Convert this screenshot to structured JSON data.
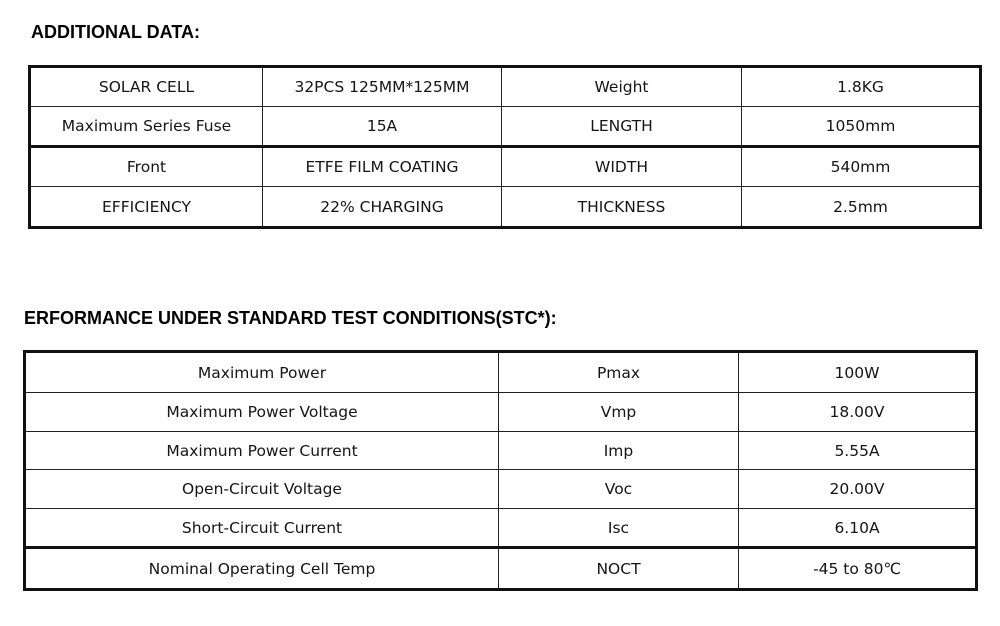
{
  "additional": {
    "title": "ADDITIONAL DATA:",
    "rows": [
      [
        "SOLAR CELL",
        "32PCS  125MM*125MM",
        "Weight",
        "1.8KG"
      ],
      [
        "Maximum Series Fuse",
        "15A",
        "LENGTH",
        "1050mm"
      ],
      [
        "Front",
        "ETFE FILM COATING",
        "WIDTH",
        "540mm"
      ],
      [
        "EFFICIENCY",
        "22% CHARGING",
        "THICKNESS",
        "2.5mm"
      ]
    ]
  },
  "performance": {
    "title": "ERFORMANCE UNDER STANDARD TEST CONDITIONS(STC*):",
    "rows": [
      [
        "Maximum Power",
        "Pmax",
        "100W"
      ],
      [
        "Maximum Power Voltage",
        "Vmp",
        "18.00V"
      ],
      [
        "Maximum Power Current",
        "Imp",
        "5.55A"
      ],
      [
        "Open-Circuit Voltage",
        "Voc",
        "20.00V"
      ],
      [
        "Short-Circuit Current",
        "Isc",
        "6.10A"
      ],
      [
        "Nominal Operating Cell Temp",
        "NOCT",
        "-45 to 80℃"
      ]
    ]
  }
}
